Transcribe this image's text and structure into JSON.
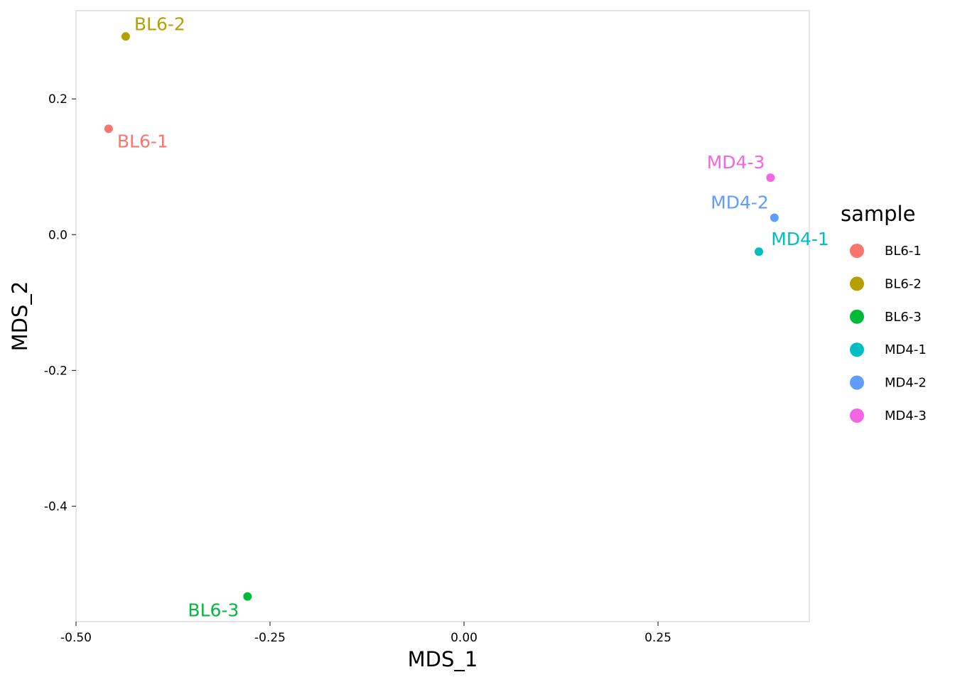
{
  "chart_data": {
    "type": "scatter",
    "title": "",
    "xlabel": "MDS_1",
    "ylabel": "MDS_2",
    "xlim": [
      -0.5,
      0.445
    ],
    "ylim": [
      -0.57,
      0.33
    ],
    "x_ticks": [
      -0.5,
      -0.25,
      0,
      0.25
    ],
    "x_tick_labels": [
      "-0.50",
      "-0.25",
      "0.00",
      "0.25"
    ],
    "y_ticks": [
      -0.4,
      -0.2,
      0,
      0.2
    ],
    "y_tick_labels": [
      "-0.4",
      "-0.2",
      "0.0",
      "0.2"
    ],
    "grid": false,
    "legend": {
      "title": "sample",
      "position": "right",
      "entries": [
        "BL6-1",
        "BL6-2",
        "BL6-3",
        "MD4-1",
        "MD4-2",
        "MD4-3"
      ]
    },
    "points": [
      {
        "label": "BL6-1",
        "x": -0.458,
        "y": 0.156,
        "color": "#F8766D",
        "label_pos": "below-right"
      },
      {
        "label": "BL6-2",
        "x": -0.436,
        "y": 0.292,
        "color": "#B79F00",
        "label_pos": "above-right"
      },
      {
        "label": "BL6-3",
        "x": -0.279,
        "y": -0.533,
        "color": "#00BA38",
        "label_pos": "below-left"
      },
      {
        "label": "MD4-1",
        "x": 0.38,
        "y": -0.025,
        "color": "#00BFC4",
        "label_pos": "above-right"
      },
      {
        "label": "MD4-2",
        "x": 0.4,
        "y": 0.025,
        "color": "#619CFF",
        "label_pos": "above-left"
      },
      {
        "label": "MD4-3",
        "x": 0.395,
        "y": 0.084,
        "color": "#F564E3",
        "label_pos": "above-left"
      }
    ]
  },
  "colors": {
    "panel_border": "#d9d9d9",
    "tick": "#333333"
  }
}
